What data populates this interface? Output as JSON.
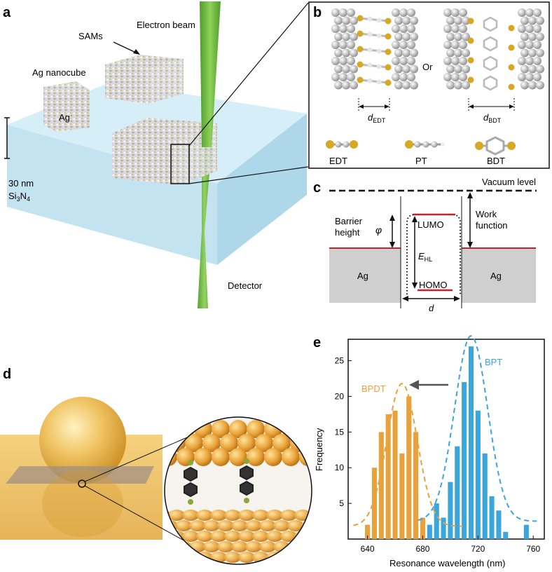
{
  "panels": {
    "a": {
      "letter": "a",
      "electron_beam": "Electron beam",
      "sams": "SAMs",
      "ag_nanocube": "Ag nanocube",
      "ag": "Ag",
      "thickness": "30 nm",
      "substrate_main": "Si",
      "substrate_sub1": "3",
      "substrate_mid": "N",
      "substrate_sub2": "4",
      "detector": "Detector"
    },
    "b": {
      "letter": "b",
      "or": "Or",
      "d_edt_main": "d",
      "d_edt_sub": "EDT",
      "d_bdt_main": "d",
      "d_bdt_sub": "BDT",
      "edt": "EDT",
      "pt": "PT",
      "bdt": "BDT"
    },
    "c": {
      "letter": "c",
      "vacuum_level": "Vacuum level",
      "barrier_line1": "Barrier",
      "barrier_line2": "height",
      "phi": "φ",
      "lumo": "LUMO",
      "ehl_main": "E",
      "ehl_sub": "HL",
      "homo": "HOMO",
      "work_line1": "Work",
      "work_line2": "function",
      "ag_left": "Ag",
      "ag_right": "Ag",
      "d": "d"
    },
    "d": {
      "letter": "d"
    },
    "e": {
      "letter": "e"
    }
  },
  "colors": {
    "bpdt": "#e9a23b",
    "bpt": "#3aa6dc",
    "beam": "#6fbf3d",
    "substrate": "#cde8f3",
    "gold": "#e8b448",
    "level_red": "#c8202c"
  },
  "chart_data": {
    "type": "bar",
    "xlabel": "Resonance wavelength (nm)",
    "ylabel": "Frequency",
    "xlim": [
      626,
      768
    ],
    "ylim": [
      0,
      28
    ],
    "xticks": [
      640,
      680,
      720,
      760
    ],
    "yticks": [
      5,
      10,
      15,
      20,
      25
    ],
    "bin_width": 5,
    "series": [
      {
        "name": "BPDT",
        "color": "#e9a23b",
        "bars": [
          [
            640,
            2
          ],
          [
            645,
            10
          ],
          [
            650,
            15
          ],
          [
            655,
            17.5
          ],
          [
            660,
            18
          ],
          [
            665,
            12
          ],
          [
            670,
            20
          ],
          [
            675,
            15
          ],
          [
            680,
            3
          ]
        ],
        "fit": {
          "mean": 665,
          "sigma": 11,
          "amplitude": 20,
          "baseline": 1.8
        }
      },
      {
        "name": "BPT",
        "color": "#3aa6dc",
        "bars": [
          [
            685,
            2
          ],
          [
            690,
            5
          ],
          [
            695,
            3
          ],
          [
            700,
            8
          ],
          [
            705,
            13
          ],
          [
            710,
            22
          ],
          [
            715,
            27
          ],
          [
            720,
            18
          ],
          [
            725,
            12
          ],
          [
            730,
            6
          ],
          [
            735,
            4
          ],
          [
            740,
            1
          ],
          [
            755,
            2
          ]
        ],
        "fit": {
          "mean": 715,
          "sigma": 12,
          "amplitude": 26,
          "baseline": 2.5
        }
      }
    ]
  }
}
